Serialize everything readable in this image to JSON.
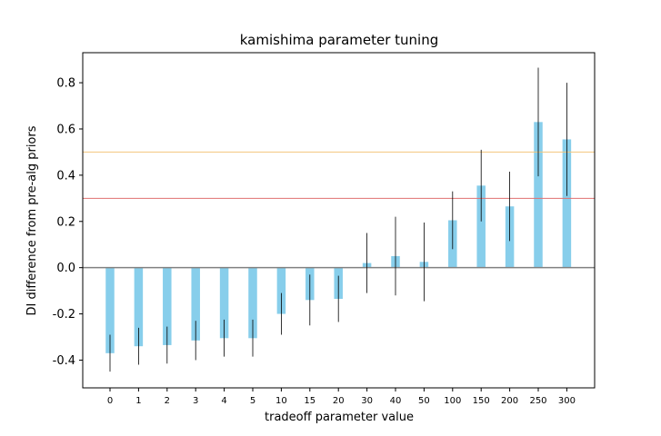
{
  "chart_data": {
    "type": "bar",
    "title": "kamishima parameter tuning",
    "xlabel": "tradeoff parameter value",
    "ylabel": "DI difference from pre-alg priors",
    "categories": [
      "0",
      "1",
      "2",
      "3",
      "4",
      "5",
      "10",
      "15",
      "20",
      "30",
      "40",
      "50",
      "100",
      "150",
      "200",
      "250",
      "300"
    ],
    "values": [
      -0.37,
      -0.34,
      -0.335,
      -0.315,
      -0.305,
      -0.305,
      -0.2,
      -0.14,
      -0.135,
      0.02,
      0.05,
      0.025,
      0.205,
      0.355,
      0.265,
      0.63,
      0.555
    ],
    "errors": [
      0.08,
      0.08,
      0.08,
      0.085,
      0.08,
      0.08,
      0.09,
      0.11,
      0.1,
      0.13,
      0.17,
      0.17,
      0.125,
      0.155,
      0.15,
      0.235,
      0.245
    ],
    "ylim": [
      -0.52,
      0.93
    ],
    "yticks": [
      "-0.4",
      "-0.2",
      "0.0",
      "0.2",
      "0.4",
      "0.6",
      "0.8"
    ],
    "reference_lines": [
      {
        "y": 0.5,
        "color": "#f2c57c"
      },
      {
        "y": 0.3,
        "color": "#e07070"
      },
      {
        "y": 0.0,
        "color": "#808080"
      }
    ],
    "bar_color": "#87ceeb",
    "errorbar_color": "#000000",
    "grid": false,
    "legend": "none"
  }
}
